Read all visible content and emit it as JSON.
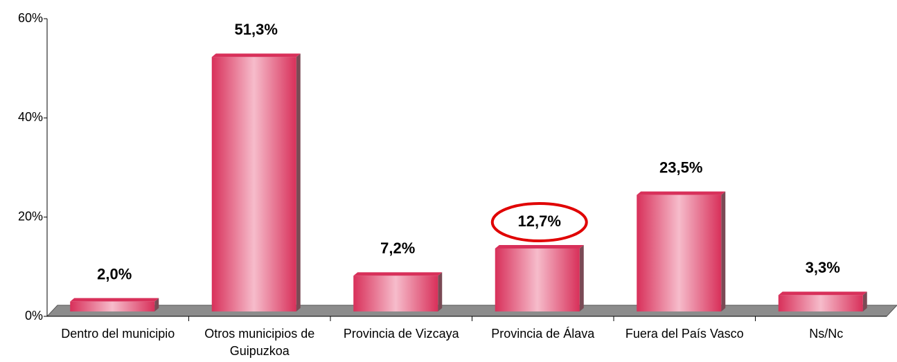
{
  "chart_data": {
    "type": "bar",
    "categories": [
      "Dentro del municipio",
      "Otros municipios de Guipuzkoa",
      "Provincia de Vizcaya",
      "Provincia de Álava",
      "Fuera del País Vasco",
      "Ns/Nc"
    ],
    "values": [
      2.0,
      51.3,
      7.2,
      12.7,
      23.5,
      3.3
    ],
    "value_labels": [
      "2,0%",
      "51,3%",
      "7,2%",
      "12,7%",
      "23,5%",
      "3,3%"
    ],
    "color": "#d8305a",
    "ylim": [
      0,
      60
    ],
    "yticks": [
      {
        "value": 0,
        "label": "0%"
      },
      {
        "value": 20,
        "label": "20%"
      },
      {
        "value": 40,
        "label": "40%"
      },
      {
        "value": 60,
        "label": "60%"
      }
    ]
  }
}
